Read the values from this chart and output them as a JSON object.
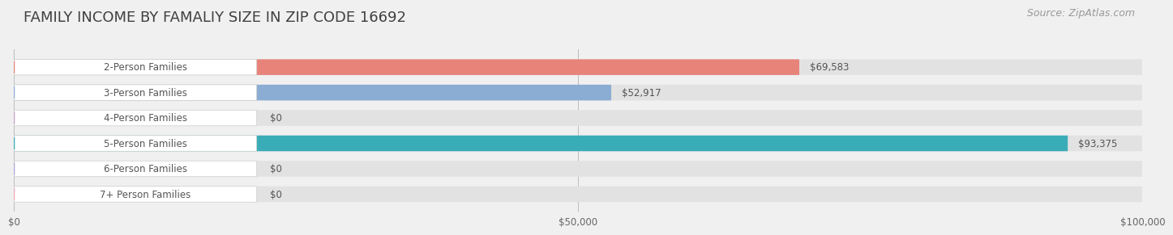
{
  "title": "FAMILY INCOME BY FAMALIY SIZE IN ZIP CODE 16692",
  "source": "Source: ZipAtlas.com",
  "categories": [
    "2-Person Families",
    "3-Person Families",
    "4-Person Families",
    "5-Person Families",
    "6-Person Families",
    "7+ Person Families"
  ],
  "values": [
    69583,
    52917,
    0,
    93375,
    0,
    0
  ],
  "bar_colors": [
    "#E8837A",
    "#8BADD4",
    "#C9A0C8",
    "#3AACB8",
    "#A9A8D8",
    "#F4A8B8"
  ],
  "value_labels": [
    "$69,583",
    "$52,917",
    "$0",
    "$93,375",
    "$0",
    "$0"
  ],
  "xlim": [
    0,
    100000
  ],
  "xticks": [
    0,
    50000,
    100000
  ],
  "xtick_labels": [
    "$0",
    "$50,000",
    "$100,000"
  ],
  "background_color": "#F0F0F0",
  "bar_bg_color": "#E2E2E2",
  "title_fontsize": 13,
  "source_fontsize": 9,
  "label_fontsize": 8.5,
  "value_fontsize": 8.5,
  "bar_height": 0.62
}
